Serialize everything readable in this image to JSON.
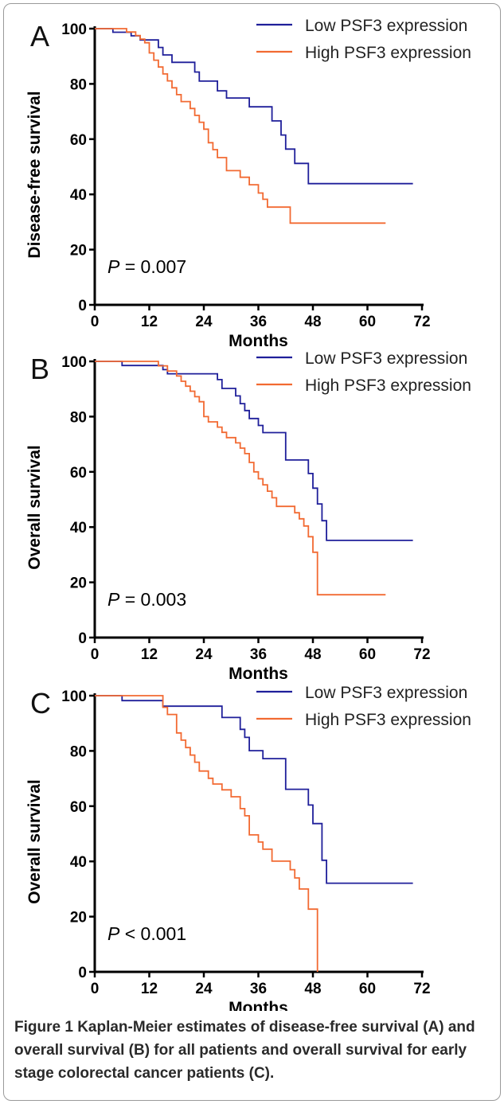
{
  "caption": {
    "label": "Figure 1",
    "text": "Kaplan-Meier estimates of disease-free survival (A) and overall survival (B) for all patients and overall survival for early stage colorectal cancer patients (C)."
  },
  "chart_data": [
    {
      "type": "line",
      "step": true,
      "panel_label": "A",
      "xlabel": "Months",
      "ylabel": "Disease-free survival",
      "xlim": [
        0,
        72
      ],
      "ylim": [
        0,
        100
      ],
      "xticks": [
        0,
        12,
        24,
        36,
        48,
        60,
        72
      ],
      "yticks": [
        0,
        20,
        40,
        60,
        80,
        100
      ],
      "grid": false,
      "legend_position": "top-right",
      "p_value": {
        "symbol": "P",
        "text": " = 0.007"
      },
      "series": [
        {
          "name": "Low PSF3 expression",
          "color": "#1f1f9a",
          "points": [
            [
              0,
              100
            ],
            [
              4,
              98.7
            ],
            [
              8,
              97.4
            ],
            [
              10,
              95.9
            ],
            [
              14,
              93.2
            ],
            [
              15,
              90.5
            ],
            [
              17,
              87.8
            ],
            [
              22,
              84.3
            ],
            [
              23,
              81
            ],
            [
              27,
              77.5
            ],
            [
              29,
              74.9
            ],
            [
              34,
              71.7
            ],
            [
              39,
              66.6
            ],
            [
              41,
              61.5
            ],
            [
              42,
              56.4
            ],
            [
              44,
              51.2
            ],
            [
              47,
              43.9
            ],
            [
              70,
              43.9
            ]
          ]
        },
        {
          "name": "High PSF3 expression",
          "color": "#f26a32",
          "points": [
            [
              0,
              100
            ],
            [
              7,
              98.8
            ],
            [
              9,
              97.5
            ],
            [
              10,
              96.2
            ],
            [
              11,
              94.9
            ],
            [
              12,
              91.2
            ],
            [
              13,
              88.6
            ],
            [
              14,
              86.1
            ],
            [
              15,
              83.6
            ],
            [
              16,
              81.1
            ],
            [
              17,
              78.6
            ],
            [
              18,
              76.1
            ],
            [
              19,
              73.6
            ],
            [
              21,
              71.1
            ],
            [
              22,
              68.6
            ],
            [
              23,
              66.1
            ],
            [
              24,
              63.6
            ],
            [
              25,
              58.7
            ],
            [
              26,
              56.2
            ],
            [
              27,
              53.3
            ],
            [
              29,
              48.6
            ],
            [
              32,
              46.2
            ],
            [
              34,
              43.5
            ],
            [
              36,
              40.5
            ],
            [
              37,
              38.2
            ],
            [
              38,
              35.4
            ],
            [
              43,
              29.6
            ],
            [
              64,
              29.6
            ]
          ]
        }
      ]
    },
    {
      "type": "line",
      "step": true,
      "panel_label": "B",
      "xlabel": "Months",
      "ylabel": "Overall survival",
      "xlim": [
        0,
        72
      ],
      "ylim": [
        0,
        100
      ],
      "xticks": [
        0,
        12,
        24,
        36,
        48,
        60,
        72
      ],
      "yticks": [
        0,
        20,
        40,
        60,
        80,
        100
      ],
      "grid": false,
      "legend_position": "top-right",
      "p_value": {
        "symbol": "P",
        "text": " = 0.003"
      },
      "series": [
        {
          "name": "Low PSF3 expression",
          "color": "#1f1f9a",
          "points": [
            [
              0,
              100
            ],
            [
              6,
              98.5
            ],
            [
              15,
              97
            ],
            [
              16,
              95.5
            ],
            [
              27,
              93.4
            ],
            [
              28,
              90.2
            ],
            [
              31,
              87.5
            ],
            [
              32,
              84.7
            ],
            [
              33,
              82.2
            ],
            [
              34,
              79.3
            ],
            [
              36,
              76.8
            ],
            [
              37,
              74.2
            ],
            [
              42,
              64.3
            ],
            [
              47,
              59.4
            ],
            [
              48,
              54.1
            ],
            [
              49,
              48.4
            ],
            [
              50,
              42.3
            ],
            [
              51,
              35.2
            ],
            [
              70,
              35.2
            ]
          ]
        },
        {
          "name": "High PSF3 expression",
          "color": "#f26a32",
          "points": [
            [
              0,
              100
            ],
            [
              14,
              98.4
            ],
            [
              16,
              96.5
            ],
            [
              18,
              94.7
            ],
            [
              19,
              92.8
            ],
            [
              20,
              91
            ],
            [
              21,
              89.2
            ],
            [
              22,
              87.2
            ],
            [
              23,
              85.4
            ],
            [
              24,
              80
            ],
            [
              25,
              78.1
            ],
            [
              27,
              76.2
            ],
            [
              28,
              74.3
            ],
            [
              29,
              72.4
            ],
            [
              31,
              70.5
            ],
            [
              32,
              68.6
            ],
            [
              33,
              66.6
            ],
            [
              34,
              63.4
            ],
            [
              35,
              60
            ],
            [
              36,
              57.5
            ],
            [
              37,
              55.3
            ],
            [
              38,
              53
            ],
            [
              39,
              50.6
            ],
            [
              40,
              47.5
            ],
            [
              44,
              45.2
            ],
            [
              45,
              43
            ],
            [
              46,
              40.4
            ],
            [
              47,
              36.5
            ],
            [
              48,
              30.9
            ],
            [
              49,
              15.5
            ],
            [
              64,
              15.5
            ]
          ]
        }
      ]
    },
    {
      "type": "line",
      "step": true,
      "panel_label": "C",
      "xlabel": "Months",
      "ylabel": "Overall survival",
      "xlim": [
        0,
        72
      ],
      "ylim": [
        0,
        100
      ],
      "xticks": [
        0,
        12,
        24,
        36,
        48,
        60,
        72
      ],
      "yticks": [
        0,
        20,
        40,
        60,
        80,
        100
      ],
      "grid": false,
      "legend_position": "top-right",
      "p_value": {
        "symbol": "P",
        "text": " < 0.001"
      },
      "series": [
        {
          "name": "Low PSF3 expression",
          "color": "#1f1f9a",
          "points": [
            [
              0,
              100
            ],
            [
              6,
              98.2
            ],
            [
              15,
              96.2
            ],
            [
              28,
              92.1
            ],
            [
              32,
              87.8
            ],
            [
              33,
              84.9
            ],
            [
              34,
              80.1
            ],
            [
              37,
              77.2
            ],
            [
              42,
              66.1
            ],
            [
              47,
              60.4
            ],
            [
              48,
              53.7
            ],
            [
              50,
              40.4
            ],
            [
              51,
              32.1
            ],
            [
              70,
              32.1
            ]
          ]
        },
        {
          "name": "High PSF3 expression",
          "color": "#f26a32",
          "points": [
            [
              0,
              100
            ],
            [
              15,
              95.8
            ],
            [
              16,
              93.2
            ],
            [
              18,
              86.5
            ],
            [
              19,
              83.9
            ],
            [
              20,
              81.2
            ],
            [
              21,
              78.5
            ],
            [
              22,
              75.9
            ],
            [
              23,
              72.7
            ],
            [
              25,
              70.1
            ],
            [
              26,
              68
            ],
            [
              28,
              65.9
            ],
            [
              30,
              63.4
            ],
            [
              32,
              59.1
            ],
            [
              33,
              56.5
            ],
            [
              34,
              49.6
            ],
            [
              36,
              47
            ],
            [
              37,
              44.4
            ],
            [
              39,
              40.1
            ],
            [
              43,
              37
            ],
            [
              44,
              34
            ],
            [
              45,
              30
            ],
            [
              47,
              22.7
            ],
            [
              49,
              0
            ]
          ]
        }
      ]
    }
  ]
}
